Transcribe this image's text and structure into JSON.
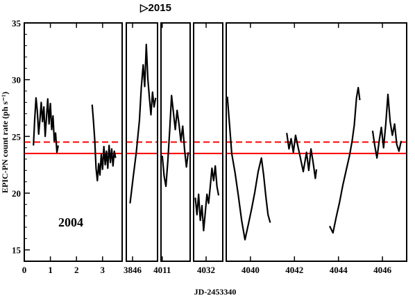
{
  "chart_data": {
    "type": "line",
    "xlabel": "JD-2453340",
    "ylabel": "EPIC-PN count rate (ph s⁻¹)",
    "ylim": [
      14,
      35
    ],
    "yticks": [
      15,
      20,
      25,
      30,
      35
    ],
    "grid": false,
    "annotations": {
      "year_2004": "2004",
      "year_2015": "▷2015"
    },
    "reference_lines": [
      {
        "name": "mean",
        "value": 23.5,
        "style": "solid",
        "color": "#ff0000"
      },
      {
        "name": "upper",
        "value": 24.5,
        "style": "dashed",
        "color": "#ff0000"
      }
    ],
    "panels": [
      {
        "xlim": [
          0,
          3.75
        ],
        "ticks": [
          {
            "x": 0,
            "label": "0"
          },
          {
            "x": 1,
            "label": "1"
          },
          {
            "x": 2,
            "label": "2"
          },
          {
            "x": 3,
            "label": "3"
          }
        ],
        "segments": [
          [
            [
              0.35,
              24.2
            ],
            [
              0.4,
              26.5
            ],
            [
              0.45,
              28.4
            ],
            [
              0.5,
              27.2
            ],
            [
              0.55,
              25.2
            ],
            [
              0.6,
              26.5
            ],
            [
              0.65,
              28.0
            ],
            [
              0.7,
              26.3
            ],
            [
              0.75,
              27.6
            ],
            [
              0.8,
              25.0
            ],
            [
              0.85,
              26.7
            ],
            [
              0.9,
              28.3
            ],
            [
              0.95,
              26.1
            ],
            [
              1.0,
              27.9
            ],
            [
              1.05,
              25.6
            ],
            [
              1.1,
              26.8
            ],
            [
              1.15,
              24.6
            ],
            [
              1.2,
              25.3
            ],
            [
              1.25,
              23.6
            ],
            [
              1.3,
              24.2
            ]
          ],
          [
            [
              2.6,
              27.8
            ],
            [
              2.65,
              26.4
            ],
            [
              2.7,
              24.7
            ],
            [
              2.75,
              22.2
            ],
            [
              2.8,
              21.1
            ],
            [
              2.85,
              22.6
            ],
            [
              2.9,
              21.6
            ],
            [
              2.95,
              23.4
            ],
            [
              3.0,
              22.1
            ],
            [
              3.05,
              24.1
            ],
            [
              3.1,
              22.5
            ],
            [
              3.15,
              23.7
            ],
            [
              3.2,
              22.2
            ],
            [
              3.25,
              24.2
            ],
            [
              3.3,
              22.7
            ],
            [
              3.35,
              23.9
            ],
            [
              3.4,
              22.4
            ],
            [
              3.45,
              23.7
            ],
            [
              3.5,
              23.1
            ]
          ]
        ]
      },
      {
        "xlim": [
          3845,
          3850
        ],
        "ticks": [
          {
            "x": 3846,
            "label": "3846"
          }
        ],
        "segments": [
          [
            [
              3845.6,
              19.1
            ],
            [
              3846.1,
              21.4
            ],
            [
              3846.6,
              23.6
            ],
            [
              3847.1,
              26.4
            ],
            [
              3847.4,
              29.3
            ],
            [
              3847.7,
              31.3
            ],
            [
              3847.95,
              29.4
            ],
            [
              3848.2,
              33.1
            ],
            [
              3848.45,
              30.1
            ],
            [
              3848.7,
              28.4
            ],
            [
              3848.95,
              26.9
            ],
            [
              3849.2,
              28.9
            ],
            [
              3849.45,
              27.6
            ],
            [
              3849.7,
              28.4
            ]
          ]
        ]
      },
      {
        "xlim": [
          4010.8,
          4015.5
        ],
        "ticks": [
          {
            "x": 4011,
            "label": "4011"
          }
        ],
        "segments": [
          [
            [
              4011.0,
              23.3
            ],
            [
              4011.3,
              21.5
            ],
            [
              4011.6,
              20.6
            ],
            [
              4011.9,
              22.8
            ],
            [
              4012.2,
              25.5
            ],
            [
              4012.5,
              28.6
            ],
            [
              4012.8,
              27.1
            ],
            [
              4013.1,
              25.6
            ],
            [
              4013.4,
              27.3
            ],
            [
              4013.7,
              26.1
            ],
            [
              4014.0,
              24.6
            ],
            [
              4014.3,
              25.9
            ],
            [
              4014.6,
              23.8
            ],
            [
              4014.9,
              22.3
            ],
            [
              4015.2,
              23.6
            ]
          ]
        ]
      },
      {
        "xlim": [
          4030.5,
          4034
        ],
        "ticks": [
          {
            "x": 4032,
            "label": "4032"
          }
        ],
        "segments": [
          [
            [
              4030.7,
              19.6
            ],
            [
              4030.9,
              18.1
            ],
            [
              4031.1,
              19.9
            ],
            [
              4031.3,
              17.6
            ],
            [
              4031.5,
              18.9
            ],
            [
              4031.7,
              16.7
            ],
            [
              4031.9,
              18.3
            ],
            [
              4032.1,
              19.9
            ],
            [
              4032.3,
              19.1
            ],
            [
              4032.5,
              20.6
            ],
            [
              4032.7,
              22.2
            ],
            [
              4032.9,
              21.1
            ],
            [
              4033.1,
              22.4
            ],
            [
              4033.3,
              20.6
            ],
            [
              4033.5,
              19.8
            ]
          ]
        ]
      },
      {
        "xlim": [
          4038.9,
          4047.1
        ],
        "ticks": [
          {
            "x": 4040,
            "label": "4040"
          },
          {
            "x": 4042,
            "label": "4042"
          },
          {
            "x": 4044,
            "label": "4044"
          },
          {
            "x": 4046,
            "label": "4046"
          }
        ],
        "segments": [
          [
            [
              4038.95,
              28.5
            ],
            [
              4039.05,
              26.0
            ],
            [
              4039.15,
              23.5
            ],
            [
              4039.3,
              21.8
            ],
            [
              4039.45,
              19.8
            ],
            [
              4039.6,
              17.6
            ],
            [
              4039.75,
              15.9
            ],
            [
              4039.9,
              17.2
            ],
            [
              4040.05,
              18.6
            ],
            [
              4040.2,
              20.1
            ],
            [
              4040.35,
              21.9
            ],
            [
              4040.5,
              23.1
            ],
            [
              4040.6,
              21.6
            ],
            [
              4040.7,
              19.7
            ],
            [
              4040.8,
              18.1
            ],
            [
              4040.9,
              17.4
            ]
          ],
          [
            [
              4041.65,
              25.3
            ],
            [
              4041.75,
              23.9
            ],
            [
              4041.85,
              24.8
            ],
            [
              4041.95,
              23.6
            ],
            [
              4042.05,
              25.1
            ],
            [
              4042.15,
              24.2
            ],
            [
              4042.25,
              23.3
            ],
            [
              4042.4,
              21.9
            ],
            [
              4042.55,
              23.6
            ],
            [
              4042.65,
              22.0
            ],
            [
              4042.75,
              23.9
            ],
            [
              4042.85,
              22.7
            ],
            [
              4042.95,
              21.3
            ],
            [
              4043.0,
              22.1
            ]
          ],
          [
            [
              4043.6,
              17.1
            ],
            [
              4043.75,
              16.5
            ],
            [
              4043.9,
              17.9
            ],
            [
              4044.05,
              19.2
            ],
            [
              4044.2,
              20.7
            ],
            [
              4044.35,
              22.0
            ],
            [
              4044.5,
              23.3
            ],
            [
              4044.62,
              24.6
            ],
            [
              4044.72,
              26.0
            ],
            [
              4044.82,
              28.4
            ],
            [
              4044.9,
              29.3
            ],
            [
              4044.97,
              28.2
            ]
          ],
          [
            [
              4045.55,
              25.5
            ],
            [
              4045.65,
              24.2
            ],
            [
              4045.75,
              23.1
            ],
            [
              4045.85,
              24.6
            ],
            [
              4045.95,
              25.8
            ],
            [
              4046.05,
              24.0
            ],
            [
              4046.15,
              26.1
            ],
            [
              4046.25,
              28.7
            ],
            [
              4046.35,
              26.3
            ],
            [
              4046.45,
              25.1
            ],
            [
              4046.55,
              26.1
            ],
            [
              4046.65,
              24.3
            ],
            [
              4046.75,
              23.7
            ],
            [
              4046.85,
              24.6
            ]
          ]
        ]
      }
    ]
  }
}
